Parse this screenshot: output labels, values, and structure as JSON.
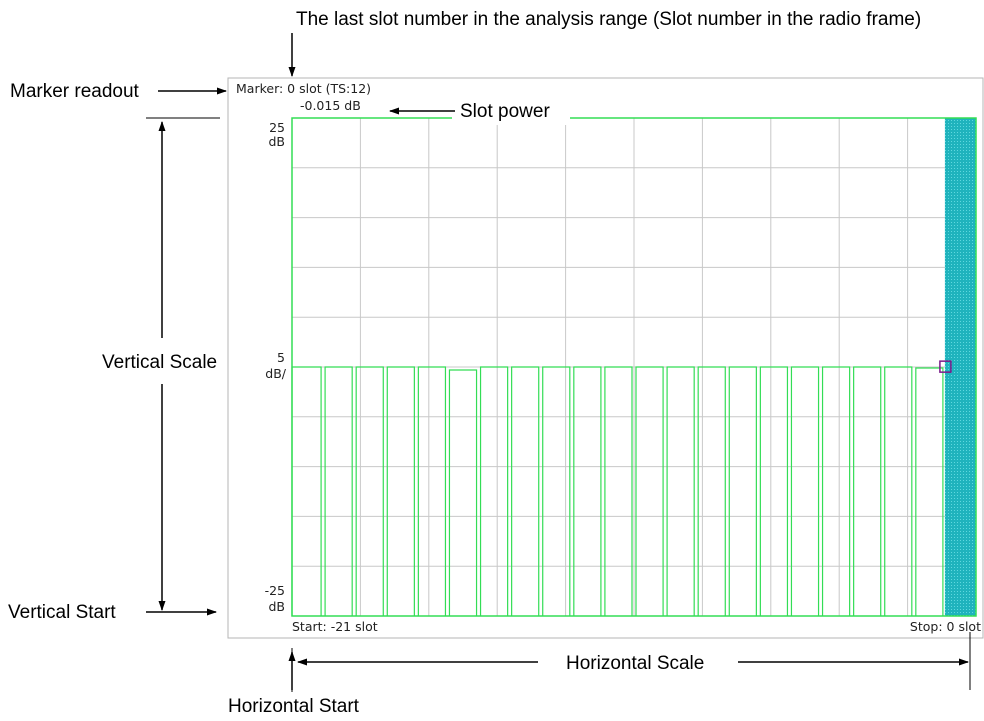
{
  "callouts": {
    "last_slot": "The last slot number in the analysis range (Slot number in the radio frame)",
    "marker_readout": "Marker readout",
    "slot_power": "Slot power",
    "vertical_scale": "Vertical Scale",
    "vertical_start": "Vertical Start",
    "horizontal_scale": "Horizontal Scale",
    "horizontal_start": "Horizontal Start"
  },
  "screen": {
    "marker_line": "Marker: 0 slot (TS:12)",
    "power_value": "-0.015 dB",
    "y_top": "25",
    "y_top_unit": "dB",
    "y_scale": "5",
    "y_scale_unit": "dB/",
    "y_bottom": "-25",
    "y_bottom_unit": "dB",
    "start_label": "Start: -21 slot",
    "stop_label": "Stop: 0 slot"
  },
  "chart_data": {
    "type": "bar",
    "x_start": -21,
    "x_stop": 0,
    "x_unit": "slot",
    "ylim": [
      -25,
      25
    ],
    "y_per_div": 5,
    "slots": [
      -21,
      -20,
      -19,
      -18,
      -17,
      -16,
      -15,
      -14,
      -13,
      -12,
      -11,
      -10,
      -9,
      -8,
      -7,
      -6,
      -5,
      -4,
      -3,
      -2,
      -1,
      0
    ],
    "values": [
      0,
      0,
      0,
      0,
      0,
      -0.3,
      0,
      0,
      0,
      0,
      0,
      0,
      0,
      0,
      0,
      0,
      0,
      0,
      0,
      0,
      -0.1,
      -0.015
    ],
    "marker_slot": 0,
    "marker_value": -0.015,
    "colors": {
      "trace": "#33dd55",
      "highlight": "#20b8c0",
      "grid": "#c8c8c8",
      "marker": "#7a1a8a"
    }
  }
}
